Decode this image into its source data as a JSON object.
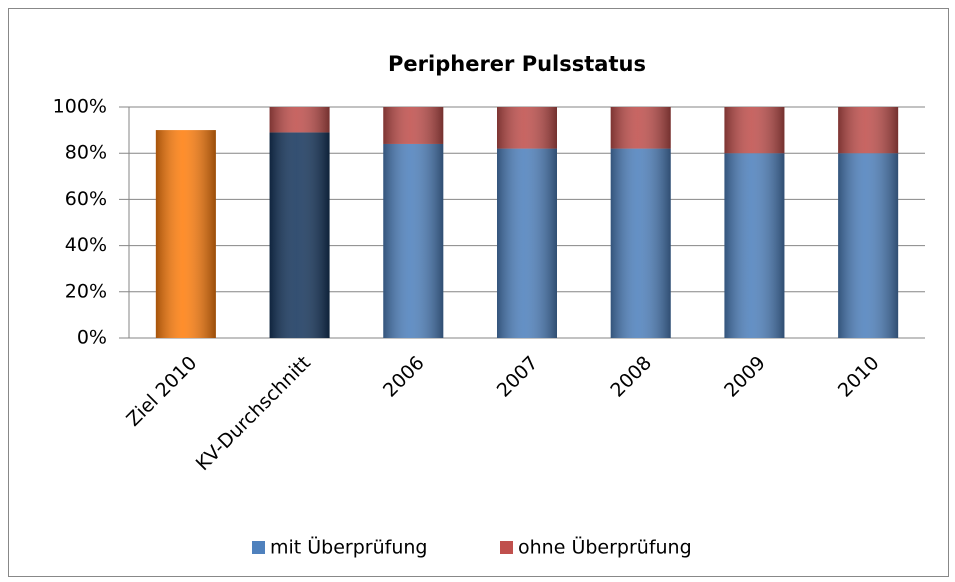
{
  "chart_data": {
    "type": "stacked_bar",
    "title": "Peripherer Pulsstatus",
    "categories": [
      "Ziel 2010",
      "KV-Durchschnitt",
      "2006",
      "2007",
      "2008",
      "2009",
      "2010"
    ],
    "series": [
      {
        "name": "mit Überprüfung",
        "color": "#4f81bd",
        "colors": [
          "#ff7f0f",
          "#17375e",
          "#4f81bd",
          "#4f81bd",
          "#4f81bd",
          "#4f81bd",
          "#4f81bd"
        ],
        "values": [
          90,
          89,
          84,
          82,
          82,
          80,
          80
        ]
      },
      {
        "name": "ohne Überprüfung",
        "color": "#c0504d",
        "values": [
          null,
          11,
          16,
          18,
          18,
          20,
          20
        ]
      }
    ],
    "ylim": [
      0,
      100
    ],
    "yticks": [
      {
        "value": 0,
        "label": "0%"
      },
      {
        "value": 20,
        "label": "20%"
      },
      {
        "value": 40,
        "label": "40%"
      },
      {
        "value": 60,
        "label": "60%"
      },
      {
        "value": 80,
        "label": "80%"
      },
      {
        "value": 100,
        "label": "100%"
      }
    ],
    "grid": true,
    "legend": "bottom"
  }
}
